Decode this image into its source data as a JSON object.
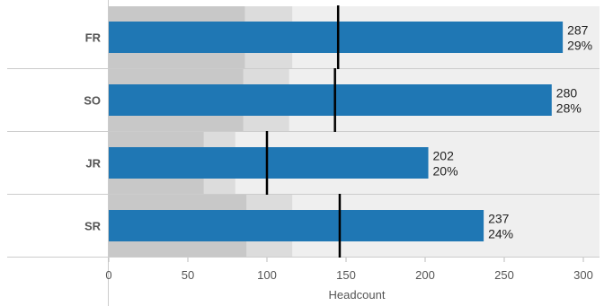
{
  "chart_data": {
    "type": "bar",
    "orientation": "horizontal",
    "style": "bullet",
    "categories": [
      "FR",
      "SO",
      "JR",
      "SR"
    ],
    "values": [
      287,
      280,
      202,
      237
    ],
    "percent_labels": [
      "29%",
      "28%",
      "20%",
      "24%"
    ],
    "reference_bands": [
      {
        "dark": 86,
        "light": 116
      },
      {
        "dark": 85,
        "light": 114
      },
      {
        "dark": 60,
        "light": 80
      },
      {
        "dark": 87,
        "light": 116
      }
    ],
    "reference_lines": [
      145,
      143,
      100,
      146
    ],
    "xlabel": "Headcount",
    "ylabel": "",
    "xlim": [
      0,
      320
    ],
    "xticks": [
      0,
      50,
      100,
      150,
      200,
      250,
      300
    ],
    "grid": false,
    "legend": "none"
  },
  "colors": {
    "bar": "#1f77b4",
    "background": "#efefef",
    "band_dark": "#c8c8c8",
    "band_light": "#dcdcdc",
    "reference_line": "#000000",
    "divider": "#cccccc"
  }
}
